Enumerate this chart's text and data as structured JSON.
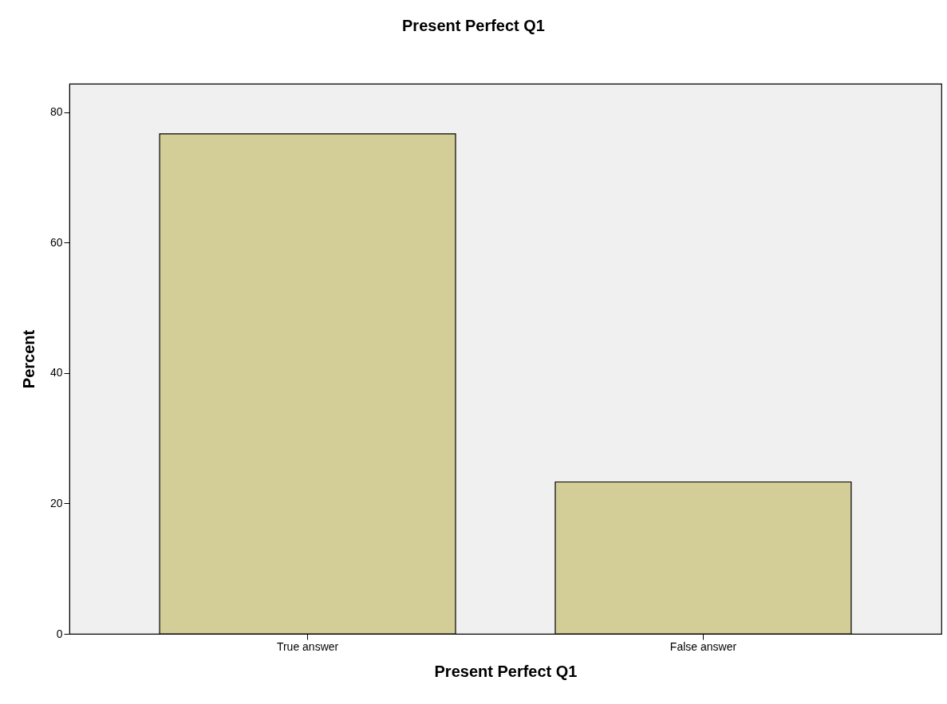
{
  "chart_data": {
    "type": "bar",
    "title": "Present Perfect Q1",
    "xlabel": "Present Perfect Q1",
    "ylabel": "Percent",
    "categories": [
      "True answer",
      "False answer"
    ],
    "values": [
      76.7,
      23.3
    ],
    "color": "#d3ce97",
    "ylim": [
      0,
      84.4
    ],
    "yticks": [
      0,
      20,
      40,
      60,
      80
    ],
    "grid": false
  }
}
